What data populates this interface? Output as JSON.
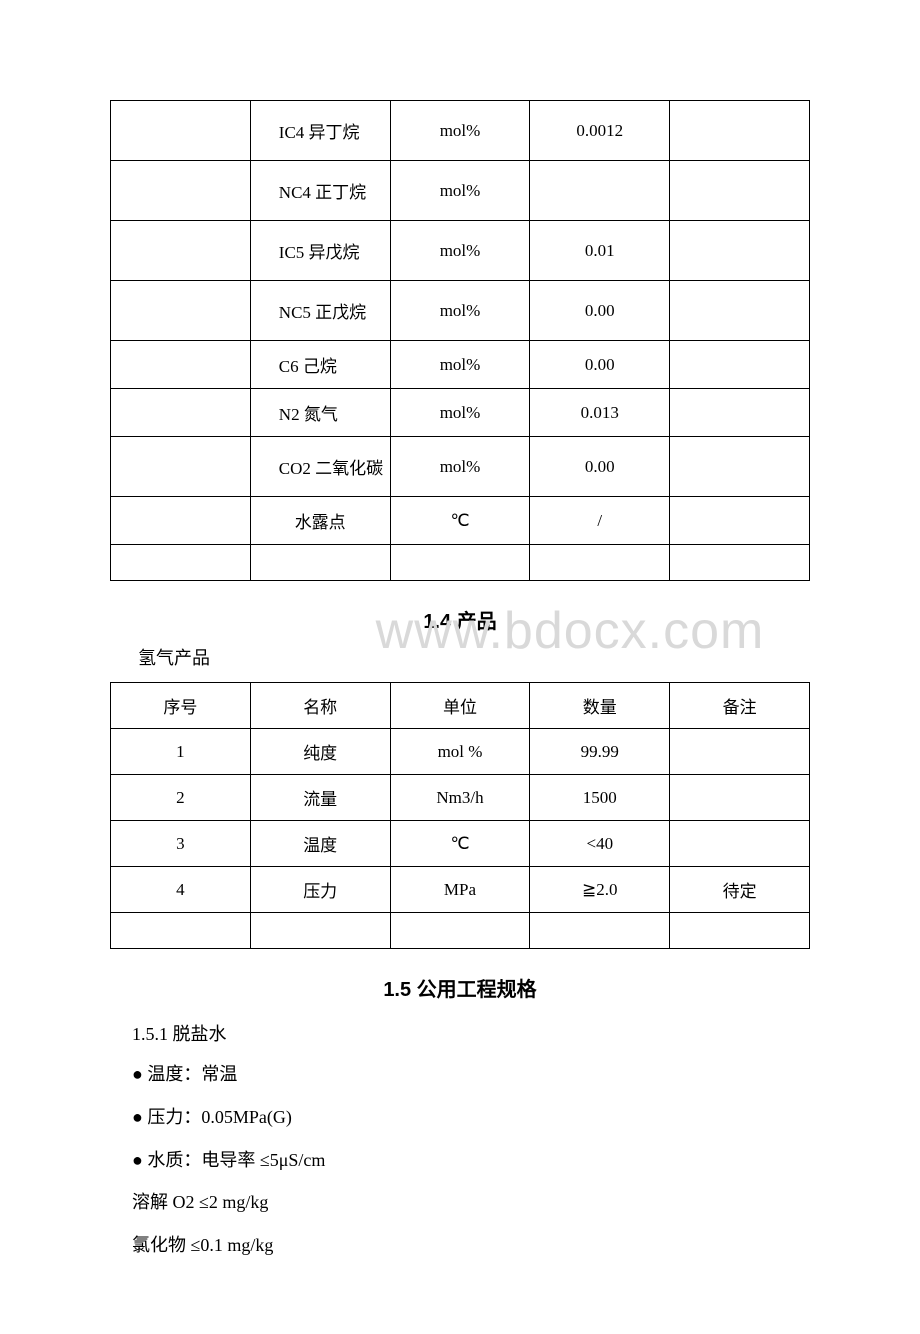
{
  "table1": {
    "rows": [
      {
        "c1": "",
        "c2": "IC4 异丁烷",
        "c3": "mol%",
        "c4": "0.0012",
        "c5": "",
        "tall": true
      },
      {
        "c1": "",
        "c2": "NC4 正丁烷",
        "c3": "mol%",
        "c4": "",
        "c5": "",
        "tall": true
      },
      {
        "c1": "",
        "c2": "IC5 异戊烷",
        "c3": "mol%",
        "c4": "0.01",
        "c5": "",
        "tall": true
      },
      {
        "c1": "",
        "c2": "NC5 正戊烷",
        "c3": "mol%",
        "c4": "0.00",
        "c5": "",
        "tall": true
      },
      {
        "c1": "",
        "c2": "C6 己烷",
        "c3": "mol%",
        "c4": "0.00",
        "c5": ""
      },
      {
        "c1": "",
        "c2": "N2 氮气",
        "c3": "mol%",
        "c4": "0.013",
        "c5": ""
      },
      {
        "c1": "",
        "c2": "CO2 二氧化碳",
        "c3": "mol%",
        "c4": "0.00",
        "c5": "",
        "tall": true
      },
      {
        "c1": "",
        "c2": "水露点",
        "c3": "℃",
        "c4": "/",
        "c5": "",
        "dewpoint": true
      },
      {
        "c1": "",
        "c2": "",
        "c3": "",
        "c4": "",
        "c5": "",
        "empty": true
      }
    ]
  },
  "heading_1_4": "1.4 产品",
  "watermark_text": "www.bdocx.com",
  "sub_label_h2": "氢气产品",
  "table2": {
    "header": {
      "c1": "序号",
      "c2": "名称",
      "c3": "单位",
      "c4": "数量",
      "c5": "备注"
    },
    "rows": [
      {
        "c1": "1",
        "c2": "纯度",
        "c3": "mol %",
        "c4": "99.99",
        "c5": ""
      },
      {
        "c1": "2",
        "c2": "流量",
        "c3": "Nm3/h",
        "c4": "1500",
        "c5": ""
      },
      {
        "c1": "3",
        "c2": "温度",
        "c3": "℃",
        "c4": "<40",
        "c5": ""
      },
      {
        "c1": "4",
        "c2": "压力",
        "c3": "MPa",
        "c4": "≧2.0",
        "c5": "待定"
      },
      {
        "c1": "",
        "c2": "",
        "c3": "",
        "c4": "",
        "c5": "",
        "empty": true
      }
    ]
  },
  "heading_1_5": "1.5 公用工程规格",
  "section_1_5_1": "1.5.1 脱盐水",
  "bullets": [
    "温度：常温",
    "压力：0.05MPa(G)",
    "水质：电导率 ≤5μS/cm"
  ],
  "lines": [
    "溶解 O2 ≤2 mg/kg",
    "氯化物 ≤0.1 mg/kg"
  ],
  "colors": {
    "text": "#000000",
    "border": "#000000",
    "watermark": "#d9d9d9",
    "background": "#ffffff"
  }
}
